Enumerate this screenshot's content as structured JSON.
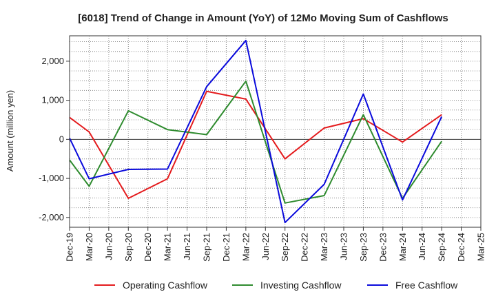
{
  "chart_data": {
    "type": "line",
    "title": "[6018]  Trend of Change in Amount (YoY) of 12Mo Moving Sum of Cashflows",
    "xlabel": "",
    "ylabel": "Amount (million yen)",
    "ylim": [
      -2250,
      2650
    ],
    "yticks": [
      2000,
      1000,
      0,
      -1000,
      -2000
    ],
    "ytick_labels": [
      "2,000",
      "1,000",
      "0",
      "-1,000",
      "-2,000"
    ],
    "categories": [
      "Dec-19",
      "Mar-20",
      "Jun-20",
      "Sep-20",
      "Dec-20",
      "Mar-21",
      "Jun-21",
      "Sep-21",
      "Dec-21",
      "Mar-22",
      "Jun-22",
      "Sep-22",
      "Dec-22",
      "Mar-23",
      "Jun-23",
      "Sep-23",
      "Dec-23",
      "Mar-24",
      "Jun-24",
      "Sep-24",
      "Dec-24",
      "Mar-25"
    ],
    "grid": true,
    "legend_position": "bottom",
    "series": [
      {
        "name": "Operating Cashflow",
        "color": "#e41a1c",
        "values": [
          560,
          190,
          null,
          -1510,
          null,
          -1010,
          null,
          1230,
          null,
          1030,
          null,
          -500,
          null,
          290,
          null,
          530,
          null,
          -70,
          null,
          630,
          null,
          null
        ]
      },
      {
        "name": "Investing Cashflow",
        "color": "#2e8b2e",
        "values": [
          -530,
          -1200,
          null,
          730,
          null,
          250,
          null,
          120,
          null,
          1490,
          null,
          -1630,
          null,
          -1440,
          null,
          630,
          null,
          -1510,
          null,
          -50,
          null,
          null
        ]
      },
      {
        "name": "Free Cashflow",
        "color": "#0a0adc",
        "values": [
          30,
          -1010,
          null,
          -770,
          null,
          -760,
          null,
          1350,
          null,
          2530,
          null,
          -2130,
          null,
          -1150,
          null,
          1160,
          null,
          -1550,
          null,
          580,
          null,
          null
        ]
      }
    ]
  }
}
